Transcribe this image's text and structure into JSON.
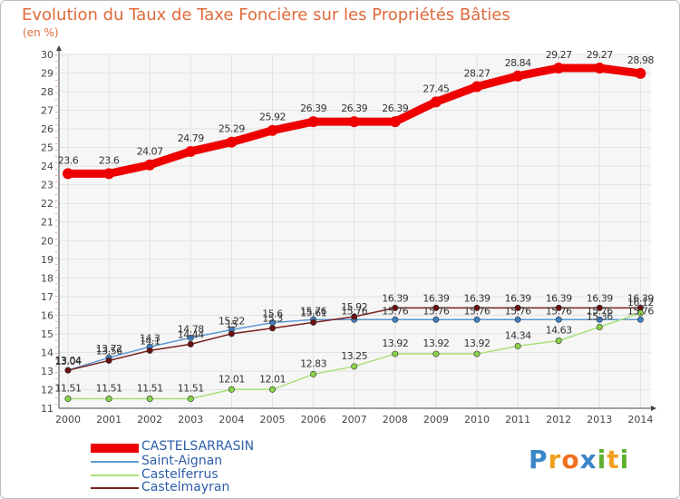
{
  "header": {
    "title": "Evolution du Taux de Taxe Foncière sur les Propriétés Bâties",
    "unit": "(en %)"
  },
  "brand": {
    "letters": [
      "P",
      "r",
      "o",
      "x",
      "i",
      "t",
      "i"
    ],
    "colors": [
      "#3a86c8",
      "#f0a020",
      "#f07020",
      "#3a86c8",
      "#60b030",
      "#f0a020",
      "#60b030"
    ]
  },
  "chart_data": {
    "type": "line",
    "title": "Evolution du Taux de Taxe Foncière sur les Propriétés Bâties",
    "ylabel": "(en %)",
    "xlabel": "",
    "x": [
      "2000",
      "2001",
      "2002",
      "2003",
      "2004",
      "2005",
      "2006",
      "2007",
      "2008",
      "2009",
      "2010",
      "2011",
      "2012",
      "2013",
      "2014"
    ],
    "ylim": [
      11,
      30
    ],
    "yticks": [
      "11",
      "12",
      "13",
      "14",
      "15",
      "16",
      "17",
      "18",
      "19",
      "20",
      "21",
      "22",
      "23",
      "24",
      "25",
      "26",
      "27",
      "28",
      "29",
      "30"
    ],
    "grid": true,
    "legend_position": "bottom-left",
    "series": [
      {
        "name": "CASTELSARRASIN",
        "color": "#ee0000",
        "values": [
          23.6,
          23.6,
          24.07,
          24.79,
          25.29,
          25.92,
          26.39,
          26.39,
          26.39,
          27.45,
          28.27,
          28.84,
          29.27,
          29.27,
          28.98
        ],
        "labels": [
          "23.6",
          "23.6",
          "24.07",
          "24.79",
          "25.29",
          "25.92",
          "26.39",
          "26.39",
          "26.39",
          "27.45",
          "28.27",
          "28.84",
          "29.27",
          "29.27",
          "28.98"
        ]
      },
      {
        "name": "Saint-Aignan",
        "color": "#5d9bd3",
        "marker": "#3f7fc0",
        "values": [
          13.04,
          13.72,
          14.3,
          14.78,
          15.22,
          15.6,
          15.76,
          15.76,
          15.76,
          15.76,
          15.76,
          15.76,
          15.76,
          15.76,
          15.76
        ],
        "labels": [
          "13.04",
          "13.72",
          "14.3",
          "14.78",
          "15.22",
          "15.6",
          "15.76",
          "15.76",
          "15.76",
          "15.76",
          "15.76",
          "15.76",
          "15.76",
          "15.76",
          "15.76"
        ]
      },
      {
        "name": "Castelferrus",
        "color": "#a8e07a",
        "marker": "#8ad24a",
        "values": [
          11.51,
          11.51,
          11.51,
          11.51,
          12.01,
          12.01,
          12.83,
          13.25,
          13.92,
          13.92,
          13.92,
          14.34,
          14.63,
          15.36,
          16.12
        ],
        "labels": [
          "11.51",
          "11.51",
          "11.51",
          "11.51",
          "12.01",
          "12.01",
          "12.83",
          "13.25",
          "13.92",
          "13.92",
          "13.92",
          "14.34",
          "14.63",
          "15.36",
          "16.12"
        ]
      },
      {
        "name": "Castelmayran",
        "color": "#7a2020",
        "marker": "#6a1010",
        "values": [
          13.04,
          13.56,
          14.1,
          14.44,
          15.0,
          15.3,
          15.61,
          15.92,
          16.39,
          16.39,
          16.39,
          16.39,
          16.39,
          16.39,
          16.39
        ],
        "labels": [
          "13.04",
          "13.56",
          "14.1",
          "14.44",
          "15",
          "15.3",
          "15.61",
          "15.92",
          "16.39",
          "16.39",
          "16.39",
          "16.39",
          "16.39",
          "16.39",
          "16.39"
        ]
      }
    ]
  }
}
